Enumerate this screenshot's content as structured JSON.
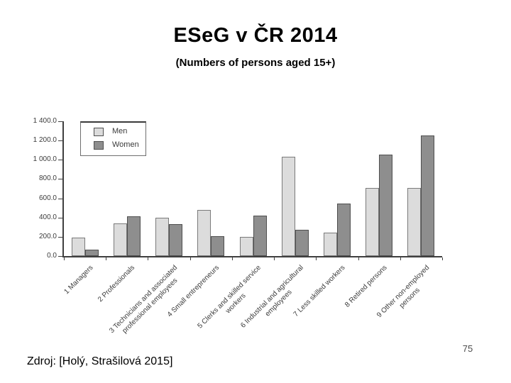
{
  "slide": {
    "title": "ESeG v ČR 2014",
    "subtitle": "(Numbers of persons aged 15+)",
    "source": "Zdroj: [Holý, Strašilová 2015]",
    "page_number": "75"
  },
  "chart_data": {
    "type": "bar",
    "title": "",
    "xlabel": "",
    "ylabel": "",
    "categories": [
      "1 Managers",
      "2 Professionals",
      "3 Technicians and associated\nprofessional employees",
      "4 Small entrepreneurs",
      "5 Clerks and skilled service\nworkers",
      "6 Industrial and agricultural\nemployees",
      "7 Less skilled workers",
      "8 Retired persons",
      "9 Other non-employed\npersons"
    ],
    "series": [
      {
        "name": "Men",
        "fill": "#dcdcdc",
        "border": "#7a7a7a",
        "values": [
          190,
          340,
          400,
          480,
          200,
          1035,
          245,
          710,
          710
        ]
      },
      {
        "name": "Women",
        "fill": "#8e8e8e",
        "border": "#4f4f4f",
        "values": [
          65,
          410,
          335,
          210,
          420,
          270,
          545,
          1050,
          1250
        ]
      }
    ],
    "ylim": [
      0,
      1400
    ],
    "ytick_interval": 200,
    "ytick_labels": [
      "0.0",
      "200.0",
      "400.0",
      "600.0",
      "800.0",
      "1 000.0",
      "1 200.0",
      "1 400.0"
    ],
    "grid": false,
    "legend": {
      "position": "top-left-inside",
      "entries": [
        "Men",
        "Women"
      ]
    },
    "axis_color": "#3f3f3f"
  }
}
